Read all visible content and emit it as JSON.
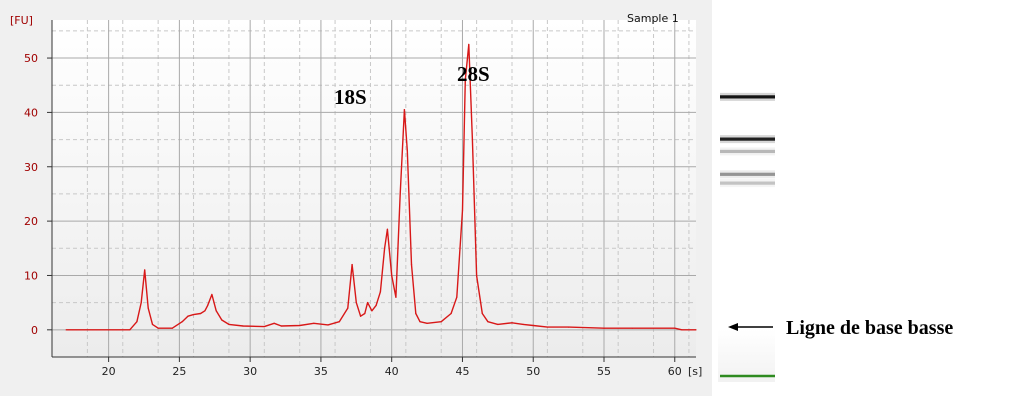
{
  "chart_data": {
    "type": "line",
    "title": "",
    "sample_label": "Sample 1",
    "ylabel": "[FU]",
    "xlabel": "[s]",
    "xlim": [
      16,
      61.5
    ],
    "ylim": [
      -5,
      57
    ],
    "xticks": [
      20,
      25,
      30,
      35,
      40,
      45,
      50,
      55,
      60
    ],
    "yticks": [
      0,
      10,
      20,
      30,
      40,
      50
    ],
    "grid": true,
    "line_color": "#d81818",
    "series": [
      {
        "x": [
          17,
          21.5,
          22.0,
          22.3,
          22.55,
          22.8,
          23.1,
          23.5,
          24.5,
          25.2,
          25.6,
          26.0,
          26.5,
          26.8,
          27.0,
          27.3,
          27.6,
          28.0,
          28.5,
          29.5,
          31,
          31.7,
          32.2,
          33.5,
          34.5,
          35.5,
          36.3,
          36.9,
          37.2,
          37.5,
          37.8,
          38.1,
          38.3,
          38.6,
          38.9,
          39.2,
          39.5,
          39.7,
          40.0,
          40.3,
          40.6,
          40.9,
          41.1,
          41.4,
          41.7,
          42.0,
          42.5,
          43.5,
          44.2,
          44.6,
          45.0,
          45.2,
          45.45,
          45.7,
          46.0,
          46.4,
          46.8,
          47.5,
          48.5,
          49.3,
          50,
          51,
          52.5,
          55,
          57,
          60,
          60.5,
          61.5
        ],
        "values": [
          0,
          0,
          1.5,
          5,
          11,
          4,
          1,
          0.3,
          0.3,
          1.5,
          2.5,
          2.8,
          3,
          3.5,
          4.5,
          6.5,
          3.5,
          1.8,
          1,
          0.7,
          0.6,
          1.2,
          0.7,
          0.8,
          1.2,
          0.9,
          1.5,
          4,
          12,
          5,
          2.5,
          3,
          5,
          3.5,
          4.5,
          7,
          15,
          18.5,
          10,
          6,
          25,
          40.5,
          33,
          12,
          3,
          1.5,
          1.2,
          1.5,
          3,
          6,
          22,
          46,
          52.5,
          35,
          10,
          3,
          1.5,
          1,
          1.3,
          1,
          0.8,
          0.5,
          0.5,
          0.3,
          0.3,
          0.3,
          0,
          0
        ]
      }
    ]
  },
  "labels": {
    "peak_18s": "18S",
    "peak_28s": "28S",
    "baseline_annotation": "Ligne de base basse"
  },
  "gel": {
    "bands": [
      {
        "position": 0.19,
        "intensity": 1.0
      },
      {
        "position": 0.31,
        "intensity": 0.95
      },
      {
        "position": 0.345,
        "intensity": 0.3
      },
      {
        "position": 0.41,
        "intensity": 0.45
      },
      {
        "position": 0.435,
        "intensity": 0.25
      }
    ],
    "baseline_marker_color": "#2e8b20"
  }
}
